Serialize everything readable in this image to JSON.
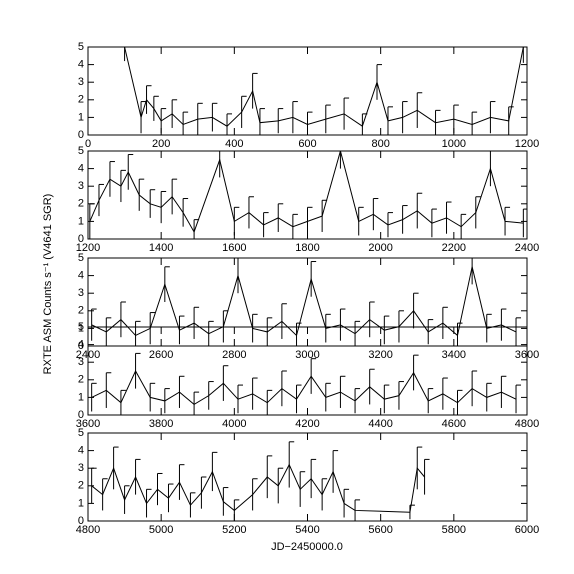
{
  "chart_data": [
    {
      "type": "line",
      "ylabel": "RXTE ASM Counts s⁻¹ (V4641 SGR)",
      "xlim": [
        0,
        1200
      ],
      "ylim": [
        0,
        5
      ],
      "xticks": [
        0,
        200,
        400,
        600,
        800,
        1000,
        1200
      ],
      "yticks": [
        0,
        1,
        2,
        3,
        4,
        5
      ],
      "x": [
        100,
        145,
        160,
        180,
        200,
        230,
        260,
        300,
        340,
        380,
        420,
        450,
        470,
        520,
        560,
        600,
        650,
        700,
        750,
        790,
        820,
        860,
        900,
        950,
        1000,
        1050,
        1100,
        1150,
        1190
      ],
      "values": [
        5,
        1,
        2,
        1.5,
        0.8,
        1.2,
        0.6,
        0.9,
        1,
        0.5,
        1.3,
        2.5,
        0.7,
        0.8,
        1,
        0.6,
        0.9,
        1.2,
        0.5,
        3,
        0.8,
        1,
        1.4,
        0.7,
        0.9,
        0.6,
        1,
        0.8,
        5
      ],
      "errors": [
        0.8,
        0.9,
        0.8,
        0.7,
        0.7,
        0.8,
        0.7,
        0.9,
        0.8,
        0.7,
        0.9,
        1,
        0.8,
        0.7,
        0.9,
        0.7,
        0.8,
        0.9,
        0.7,
        1,
        0.8,
        0.9,
        1,
        0.7,
        0.8,
        0.7,
        0.9,
        0.8,
        0.9
      ]
    },
    {
      "type": "line",
      "xlim": [
        1200,
        2400
      ],
      "ylim": [
        0,
        5
      ],
      "xticks": [
        1200,
        1400,
        1600,
        1800,
        2000,
        2200,
        2400
      ],
      "yticks": [
        0,
        1,
        2,
        3,
        4,
        5
      ],
      "x": [
        1205,
        1230,
        1260,
        1290,
        1310,
        1340,
        1370,
        1400,
        1430,
        1460,
        1490,
        1560,
        1600,
        1640,
        1680,
        1720,
        1760,
        1800,
        1840,
        1890,
        1940,
        1980,
        2020,
        2060,
        2100,
        2140,
        2180,
        2220,
        2260,
        2300,
        2340,
        2390
      ],
      "values": [
        1,
        2.2,
        3.4,
        3,
        3.8,
        2.5,
        2,
        1.8,
        2.4,
        1.5,
        0.4,
        4.5,
        1,
        1.5,
        0.8,
        1.2,
        0.7,
        1,
        1.3,
        5,
        1,
        1.4,
        0.8,
        1.1,
        1.6,
        0.9,
        1.2,
        0.7,
        1.5,
        4,
        1,
        0.9
      ],
      "errors": [
        1,
        0.9,
        1,
        0.9,
        1,
        0.9,
        0.8,
        0.9,
        1,
        0.8,
        0.7,
        1,
        0.8,
        0.9,
        0.7,
        0.8,
        0.7,
        0.8,
        0.9,
        1,
        0.8,
        0.9,
        0.7,
        0.8,
        1,
        0.8,
        0.9,
        0.7,
        0.9,
        1,
        0.8,
        0.8
      ]
    },
    {
      "type": "line",
      "xlim": [
        2400,
        3600
      ],
      "ylim": [
        0,
        5
      ],
      "xticks": [
        2400,
        2600,
        2800,
        3000,
        3200,
        3400,
        3600
      ],
      "yticks": [
        0,
        1,
        2,
        3,
        4,
        5
      ],
      "x": [
        2410,
        2450,
        2490,
        2530,
        2570,
        2610,
        2650,
        2690,
        2730,
        2770,
        2810,
        2850,
        2890,
        2930,
        2970,
        3010,
        3050,
        3090,
        3130,
        3170,
        3210,
        3250,
        3290,
        3330,
        3370,
        3410,
        3450,
        3490,
        3530,
        3570
      ],
      "values": [
        1.2,
        0.8,
        1.5,
        0.6,
        1,
        3.5,
        0.9,
        1.3,
        0.7,
        1.1,
        4,
        1,
        0.8,
        1.4,
        0.6,
        3.8,
        1,
        1.2,
        0.7,
        1.5,
        0.9,
        1.1,
        2,
        0.8,
        1.3,
        0.6,
        4.5,
        1,
        1.2,
        0.8
      ],
      "errors": [
        0.9,
        0.8,
        1,
        0.8,
        0.9,
        1,
        0.8,
        0.9,
        0.7,
        0.9,
        1,
        0.8,
        0.8,
        1,
        0.7,
        1,
        0.8,
        0.9,
        0.7,
        1,
        0.8,
        0.9,
        1,
        0.7,
        0.9,
        0.7,
        1,
        0.8,
        0.9,
        0.8
      ]
    },
    {
      "type": "line",
      "xlim": [
        3600,
        4800
      ],
      "ylim": [
        0,
        5
      ],
      "xticks": [
        3600,
        3800,
        4000,
        4200,
        4400,
        4600,
        4800
      ],
      "yticks": [
        0,
        1,
        2,
        3,
        4,
        5
      ],
      "x": [
        3610,
        3650,
        3690,
        3730,
        3770,
        3810,
        3850,
        3890,
        3930,
        3970,
        4010,
        4050,
        4090,
        4130,
        4170,
        4210,
        4250,
        4290,
        4330,
        4370,
        4410,
        4450,
        4490,
        4530,
        4570,
        4610,
        4650,
        4690,
        4730,
        4770
      ],
      "values": [
        1,
        1.4,
        0.7,
        2.5,
        1,
        0.8,
        1.3,
        0.6,
        1.1,
        1.8,
        0.9,
        1.2,
        0.7,
        1.5,
        0.9,
        2.2,
        1,
        1.3,
        0.8,
        1.6,
        0.9,
        1.1,
        2.4,
        0.8,
        1.2,
        0.7,
        1.5,
        1,
        1.3,
        0.9
      ],
      "errors": [
        0.8,
        1,
        0.7,
        1,
        0.8,
        0.7,
        0.9,
        0.7,
        0.8,
        1,
        0.8,
        0.9,
        0.7,
        1,
        0.8,
        1,
        0.8,
        0.9,
        0.7,
        1,
        0.8,
        0.8,
        1,
        0.7,
        0.9,
        0.7,
        1,
        0.8,
        0.9,
        0.8
      ]
    },
    {
      "type": "line",
      "xlabel": "JD−2450000.0",
      "xlim": [
        4800,
        6000
      ],
      "ylim": [
        0,
        5
      ],
      "xticks": [
        4800,
        5000,
        5200,
        5400,
        5600,
        5800,
        6000
      ],
      "yticks": [
        0,
        1,
        2,
        3,
        4,
        5
      ],
      "x": [
        4810,
        4840,
        4870,
        4900,
        4930,
        4960,
        4990,
        5020,
        5050,
        5080,
        5110,
        5140,
        5170,
        5200,
        5250,
        5290,
        5320,
        5350,
        5380,
        5410,
        5440,
        5470,
        5500,
        5530,
        5680,
        5700,
        5720
      ],
      "values": [
        2,
        1.5,
        3,
        1.2,
        2.5,
        1,
        1.8,
        1.3,
        2.2,
        0.9,
        1.6,
        2.8,
        1.1,
        0.6,
        1.5,
        2.5,
        2,
        3.2,
        1.8,
        2.4,
        1.5,
        2.8,
        1,
        0.6,
        0.5,
        3,
        2.5
      ],
      "errors": [
        1,
        0.9,
        1.2,
        0.8,
        1,
        0.8,
        0.9,
        0.8,
        1,
        0.7,
        0.9,
        1.1,
        0.8,
        0.6,
        0.9,
        1.2,
        1,
        1.3,
        1,
        1.1,
        0.9,
        1.2,
        0.8,
        0.6,
        0.4,
        1.2,
        1
      ]
    }
  ]
}
